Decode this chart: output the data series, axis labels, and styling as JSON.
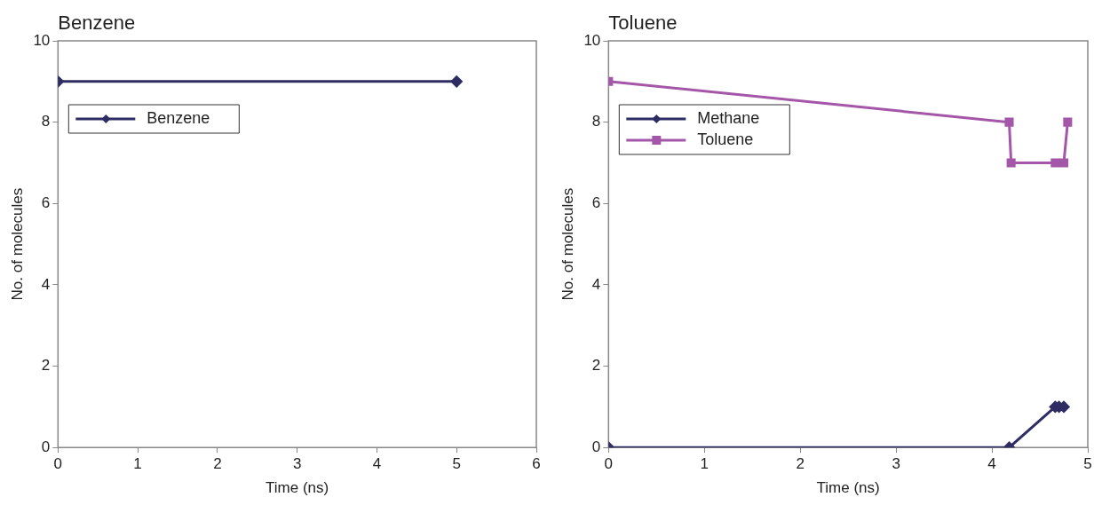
{
  "chart_data": [
    {
      "type": "line",
      "title": "Benzene",
      "xlabel": "Time (ns)",
      "ylabel": "No. of molecules",
      "xlim": [
        0,
        6
      ],
      "xticks": [
        0,
        1,
        2,
        3,
        4,
        5,
        6
      ],
      "ylim": [
        0,
        10
      ],
      "yticks": [
        0,
        2,
        4,
        6,
        8,
        10
      ],
      "grid": false,
      "legend": "top left",
      "line_style": "solid",
      "series": [
        {
          "name": "Benzene",
          "color": "#2e2d63",
          "marker": "diamond",
          "x": [
            0,
            5
          ],
          "values": [
            9,
            9
          ]
        }
      ]
    },
    {
      "type": "line",
      "title": "Toluene",
      "xlabel": "Time (ns)",
      "ylabel": "No. of molecules",
      "xlim": [
        0,
        5
      ],
      "xticks": [
        0,
        1,
        2,
        3,
        4,
        5
      ],
      "ylim": [
        0,
        10
      ],
      "yticks": [
        0,
        2,
        4,
        6,
        8,
        10
      ],
      "grid": false,
      "legend": "top left",
      "line_style": "solid",
      "series": [
        {
          "name": "Methane",
          "color": "#2e2d63",
          "marker": "diamond",
          "x": [
            0,
            4.18,
            4.66,
            4.7,
            4.75
          ],
          "values": [
            0,
            0,
            1,
            1,
            1
          ]
        },
        {
          "name": "Toluene",
          "color": "#a457a8",
          "marker": "square",
          "x": [
            0,
            4.18,
            4.2,
            4.66,
            4.75,
            4.79
          ],
          "values": [
            9,
            8,
            7,
            7,
            7,
            8
          ]
        }
      ]
    }
  ]
}
